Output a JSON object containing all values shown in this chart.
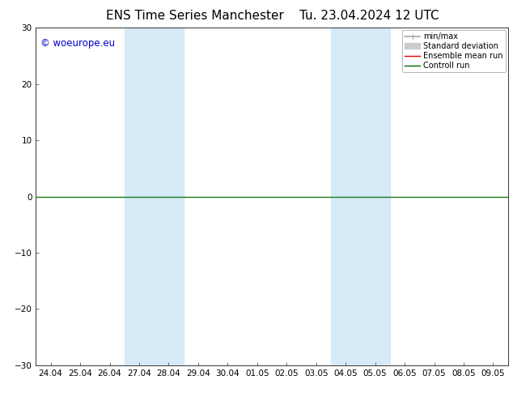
{
  "title": "ENS Time Series Manchester",
  "title2": "Tu. 23.04.2024 12 UTC",
  "ylim": [
    -30,
    30
  ],
  "yticks": [
    -30,
    -20,
    -10,
    0,
    10,
    20,
    30
  ],
  "xtick_labels": [
    "24.04",
    "25.04",
    "26.04",
    "27.04",
    "28.04",
    "29.04",
    "30.04",
    "01.05",
    "02.05",
    "03.05",
    "04.05",
    "05.05",
    "06.05",
    "07.05",
    "08.05",
    "09.05"
  ],
  "background_color": "#ffffff",
  "shade_color": "#d6eaf8",
  "shaded_bands": [
    {
      "xstart": 3,
      "xend": 5
    },
    {
      "xstart": 10,
      "xend": 12
    }
  ],
  "zeroline_color": "#1a7a1a",
  "watermark": "© woeurope.eu",
  "watermark_color": "#0000cc",
  "legend_items": [
    {
      "label": "min/max",
      "color": "#aaaaaa",
      "lw": 1.2
    },
    {
      "label": "Standard deviation",
      "color": "#cccccc",
      "lw": 5
    },
    {
      "label": "Ensemble mean run",
      "color": "#dd0000",
      "lw": 1.0
    },
    {
      "label": "Controll run",
      "color": "#006600",
      "lw": 1.0
    }
  ],
  "title_fontsize": 11,
  "tick_fontsize": 7.5,
  "watermark_fontsize": 8.5,
  "legend_fontsize": 7
}
